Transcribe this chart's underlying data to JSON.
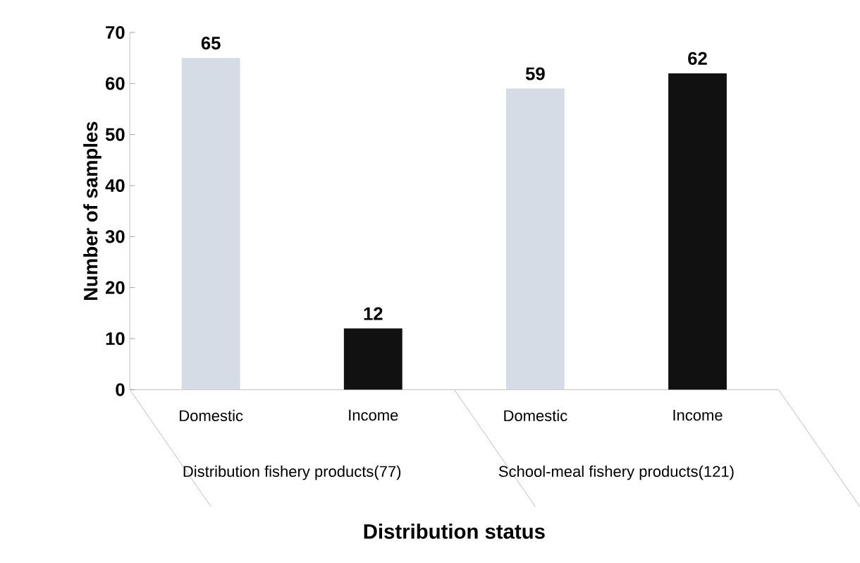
{
  "chart_data": {
    "type": "bar",
    "ylabel": "Number of samples",
    "xlabel": "Distribution status",
    "categories": [
      "Domestic",
      "Income",
      "Domestic",
      "Income"
    ],
    "values": [
      65,
      12,
      59,
      62
    ],
    "colors": [
      "#d6dce5",
      "#111111",
      "#d6dce5",
      "#111111"
    ],
    "ylim": [
      0,
      70
    ],
    "yticks": [
      0,
      10,
      20,
      30,
      40,
      50,
      60,
      70
    ],
    "data_labels": true,
    "annotations": [
      "Distribution fishery products(77)",
      "School-meal fishery products(121)"
    ]
  }
}
